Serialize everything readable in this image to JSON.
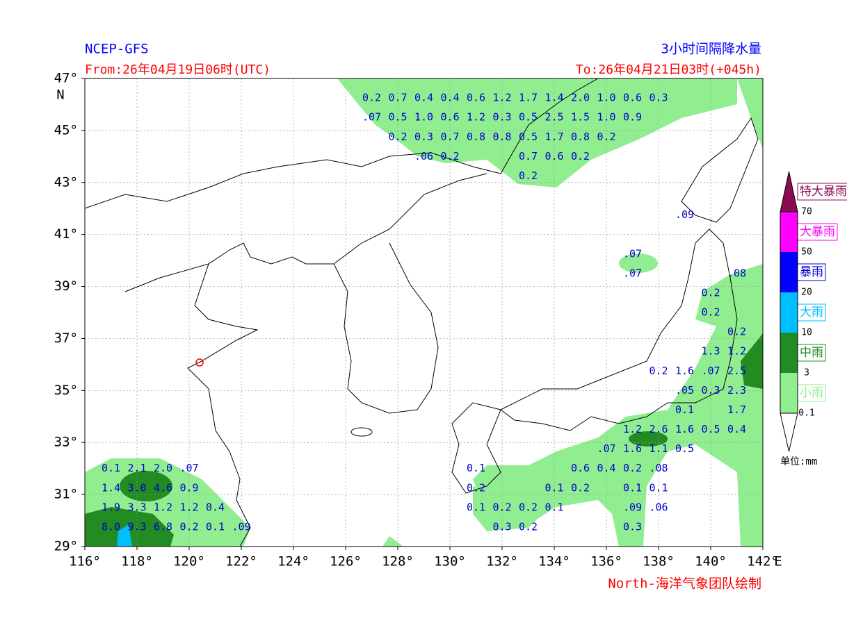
{
  "header": {
    "model": "NCEP-GFS",
    "title": "3小时间隔降水量",
    "from": "From:26年04月19日06时(UTC)",
    "to": "To:26年04月21日03时(+045h)",
    "credit": "North-海洋气象团队绘制"
  },
  "axes": {
    "xlim": [
      116,
      142
    ],
    "ylim": [
      29,
      47
    ],
    "east": "E",
    "north": "N",
    "xticks": [
      {
        "value": 116,
        "label": "116°"
      },
      {
        "value": 118,
        "label": "118°"
      },
      {
        "value": 120,
        "label": "120°"
      },
      {
        "value": 122,
        "label": "122°"
      },
      {
        "value": 124,
        "label": "124°"
      },
      {
        "value": 126,
        "label": "126°"
      },
      {
        "value": 128,
        "label": "128°"
      },
      {
        "value": 130,
        "label": "130°"
      },
      {
        "value": 132,
        "label": "132°"
      },
      {
        "value": 134,
        "label": "134°"
      },
      {
        "value": 136,
        "label": "136°"
      },
      {
        "value": 138,
        "label": "138°"
      },
      {
        "value": 140,
        "label": "140°"
      },
      {
        "value": 142,
        "label": "142°"
      }
    ],
    "yticks": [
      {
        "value": 29,
        "label": "29°"
      },
      {
        "value": 31,
        "label": "31°"
      },
      {
        "value": 33,
        "label": "33°"
      },
      {
        "value": 35,
        "label": "35°"
      },
      {
        "value": 37,
        "label": "37°"
      },
      {
        "value": 39,
        "label": "39°"
      },
      {
        "value": 41,
        "label": "41°"
      },
      {
        "value": 43,
        "label": "43°"
      },
      {
        "value": 45,
        "label": "45°"
      },
      {
        "value": 47,
        "label": "47°"
      }
    ]
  },
  "legend": {
    "unit": "单位:mm",
    "levels": [
      {
        "name": "小雨",
        "from": 0.1,
        "color": "#90ee90",
        "text_color": "#90ee90"
      },
      {
        "name": "中雨",
        "from": 3,
        "color": "#228b22",
        "text_color": "#228b22"
      },
      {
        "name": "大雨",
        "from": 10,
        "color": "#00bfff",
        "text_color": "#00bfff"
      },
      {
        "name": "暴雨",
        "from": 20,
        "color": "#0000ff",
        "text_color": "#0000cd"
      },
      {
        "name": "大暴雨",
        "from": 50,
        "color": "#ff00ff",
        "text_color": "#ff00ff"
      },
      {
        "name": "特大暴雨",
        "from": 70,
        "color": "#8b0a50",
        "text_color": "#8b0a50"
      }
    ]
  },
  "precip": {
    "rows": [
      {
        "lat": 46.25,
        "cells": [
          {
            "lon": 127,
            "text": "0.2"
          },
          {
            "lon": 128,
            "text": "0.7"
          },
          {
            "lon": 129,
            "text": "0.4"
          },
          {
            "lon": 130,
            "text": "0.4"
          },
          {
            "lon": 131,
            "text": "0.6"
          },
          {
            "lon": 132,
            "text": "1.2"
          },
          {
            "lon": 133,
            "text": "1.7"
          },
          {
            "lon": 134,
            "text": "1.4"
          },
          {
            "lon": 135,
            "text": "2.0"
          },
          {
            "lon": 136,
            "text": "1.0"
          },
          {
            "lon": 137,
            "text": "0.6"
          },
          {
            "lon": 138,
            "text": "0.3"
          }
        ]
      },
      {
        "lat": 45.5,
        "cells": [
          {
            "lon": 127,
            "text": ".07"
          },
          {
            "lon": 128,
            "text": "0.5"
          },
          {
            "lon": 129,
            "text": "1.0"
          },
          {
            "lon": 130,
            "text": "0.6"
          },
          {
            "lon": 131,
            "text": "1.2"
          },
          {
            "lon": 132,
            "text": "0.3"
          },
          {
            "lon": 133,
            "text": "0.5"
          },
          {
            "lon": 134,
            "text": "2.5"
          },
          {
            "lon": 135,
            "text": "1.5"
          },
          {
            "lon": 136,
            "text": "1.0"
          },
          {
            "lon": 137,
            "text": "0.9"
          }
        ]
      },
      {
        "lat": 44.75,
        "cells": [
          {
            "lon": 128,
            "text": "0.2"
          },
          {
            "lon": 129,
            "text": "0.3"
          },
          {
            "lon": 130,
            "text": "0.7"
          },
          {
            "lon": 131,
            "text": "0.8"
          },
          {
            "lon": 132,
            "text": "0.8"
          },
          {
            "lon": 133,
            "text": "0.5"
          },
          {
            "lon": 134,
            "text": "1.7"
          },
          {
            "lon": 135,
            "text": "0.8"
          },
          {
            "lon": 136,
            "text": "0.2"
          }
        ]
      },
      {
        "lat": 44,
        "cells": [
          {
            "lon": 129,
            "text": ".06"
          },
          {
            "lon": 130,
            "text": "0.2"
          },
          {
            "lon": 133,
            "text": "0.7"
          },
          {
            "lon": 134,
            "text": "0.6"
          },
          {
            "lon": 135,
            "text": "0.2"
          }
        ]
      },
      {
        "lat": 43.25,
        "cells": [
          {
            "lon": 133,
            "text": "0.2"
          }
        ]
      },
      {
        "lat": 41.75,
        "cells": [
          {
            "lon": 139,
            "text": ".09"
          }
        ]
      },
      {
        "lat": 40.25,
        "cells": [
          {
            "lon": 137,
            "text": ".07"
          }
        ]
      },
      {
        "lat": 39.5,
        "cells": [
          {
            "lon": 137,
            "text": ".07"
          },
          {
            "lon": 141,
            "text": ".08"
          }
        ]
      },
      {
        "lat": 38.75,
        "cells": [
          {
            "lon": 140,
            "text": "0.2"
          }
        ]
      },
      {
        "lat": 38,
        "cells": [
          {
            "lon": 140,
            "text": "0.2"
          }
        ]
      },
      {
        "lat": 37.25,
        "cells": [
          {
            "lon": 141,
            "text": "0.2"
          }
        ]
      },
      {
        "lat": 36.5,
        "cells": [
          {
            "lon": 140,
            "text": "1.3"
          },
          {
            "lon": 141,
            "text": "1.2"
          }
        ]
      },
      {
        "lat": 35.75,
        "cells": [
          {
            "lon": 138,
            "text": "0.2"
          },
          {
            "lon": 139,
            "text": "1.6"
          },
          {
            "lon": 140,
            "text": ".07"
          },
          {
            "lon": 141,
            "text": "2.5"
          }
        ]
      },
      {
        "lat": 35,
        "cells": [
          {
            "lon": 139,
            "text": ".05"
          },
          {
            "lon": 140,
            "text": "0.3"
          },
          {
            "lon": 141,
            "text": "2.3"
          }
        ]
      },
      {
        "lat": 34.25,
        "cells": [
          {
            "lon": 139,
            "text": "0.1"
          },
          {
            "lon": 141,
            "text": "1.7"
          }
        ]
      },
      {
        "lat": 33.5,
        "cells": [
          {
            "lon": 137,
            "text": "1.2"
          },
          {
            "lon": 138,
            "text": "2.6"
          },
          {
            "lon": 139,
            "text": "1.6"
          },
          {
            "lon": 140,
            "text": "0.5"
          },
          {
            "lon": 141,
            "text": "0.4"
          }
        ]
      },
      {
        "lat": 32.75,
        "cells": [
          {
            "lon": 136,
            "text": ".07"
          },
          {
            "lon": 137,
            "text": "1.6"
          },
          {
            "lon": 138,
            "text": "1.1"
          },
          {
            "lon": 139,
            "text": "0.5"
          }
        ]
      },
      {
        "lat": 32,
        "cells": [
          {
            "lon": 117,
            "text": "0.1"
          },
          {
            "lon": 118,
            "text": "2.1"
          },
          {
            "lon": 119,
            "text": "2.0"
          },
          {
            "lon": 120,
            "text": ".07"
          },
          {
            "lon": 131,
            "text": "0.1"
          },
          {
            "lon": 135,
            "text": "0.6"
          },
          {
            "lon": 136,
            "text": "0.4"
          },
          {
            "lon": 137,
            "text": "0.2"
          },
          {
            "lon": 138,
            "text": ".08"
          }
        ]
      },
      {
        "lat": 31.25,
        "cells": [
          {
            "lon": 117,
            "text": "1.4"
          },
          {
            "lon": 118,
            "text": "3.0"
          },
          {
            "lon": 119,
            "text": "4.6"
          },
          {
            "lon": 120,
            "text": "0.9"
          },
          {
            "lon": 131,
            "text": "0.2"
          },
          {
            "lon": 134,
            "text": "0.1"
          },
          {
            "lon": 135,
            "text": "0.2"
          },
          {
            "lon": 137,
            "text": "0.1"
          },
          {
            "lon": 138,
            "text": "0.1"
          }
        ]
      },
      {
        "lat": 30.5,
        "cells": [
          {
            "lon": 117,
            "text": "1.9"
          },
          {
            "lon": 118,
            "text": "3.3"
          },
          {
            "lon": 119,
            "text": "1.2"
          },
          {
            "lon": 120,
            "text": "1.2"
          },
          {
            "lon": 121,
            "text": "0.4"
          },
          {
            "lon": 131,
            "text": "0.1"
          },
          {
            "lon": 132,
            "text": "0.2"
          },
          {
            "lon": 133,
            "text": "0.2"
          },
          {
            "lon": 134,
            "text": "0.1"
          },
          {
            "lon": 137,
            "text": ".09"
          },
          {
            "lon": 138,
            "text": ".06"
          }
        ]
      },
      {
        "lat": 29.75,
        "cells": [
          {
            "lon": 117,
            "text": "8.0"
          },
          {
            "lon": 118,
            "text": "9.3"
          },
          {
            "lon": 119,
            "text": "6.8"
          },
          {
            "lon": 120,
            "text": "0.2"
          },
          {
            "lon": 121,
            "text": "0.1"
          },
          {
            "lon": 122,
            "text": ".09"
          },
          {
            "lon": 132,
            "text": "0.3"
          },
          {
            "lon": 133,
            "text": "0.2"
          },
          {
            "lon": 137,
            "text": "0.3"
          }
        ]
      }
    ]
  }
}
